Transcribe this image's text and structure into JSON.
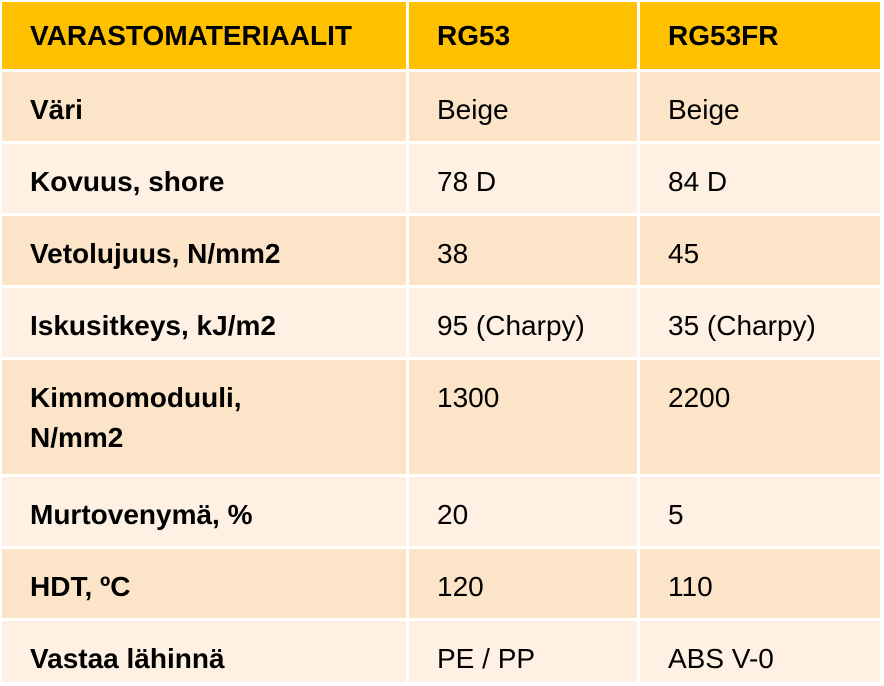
{
  "header": {
    "col1": "VARASTOMATERIAALIT",
    "col2": "RG53",
    "col3": "RG53FR"
  },
  "rows": [
    {
      "label": "Väri",
      "rg53": "Beige",
      "rg53fr": "Beige"
    },
    {
      "label": "Kovuus, shore",
      "rg53": "78 D",
      "rg53fr": "84 D"
    },
    {
      "label": "Vetolujuus, N/mm2",
      "rg53": "38",
      "rg53fr": "45"
    },
    {
      "label": "Iskusitkeys, kJ/m2",
      "rg53": "95 (Charpy)",
      "rg53fr": "35 (Charpy)"
    },
    {
      "label": "Kimmomoduuli,\nN/mm2",
      "rg53": "1300",
      "rg53fr": "2200"
    },
    {
      "label": "Murtovenymä, %",
      "rg53": "20",
      "rg53fr": "5"
    },
    {
      "label": "HDT, ºC",
      "rg53": "120",
      "rg53fr": "110"
    },
    {
      "label": "Vastaa lähinnä",
      "rg53": "PE / PP",
      "rg53fr": "ABS V-0"
    }
  ],
  "colors": {
    "header": "#ffc000",
    "row_dark": "#fce4c8",
    "row_light": "#fef1e4"
  }
}
